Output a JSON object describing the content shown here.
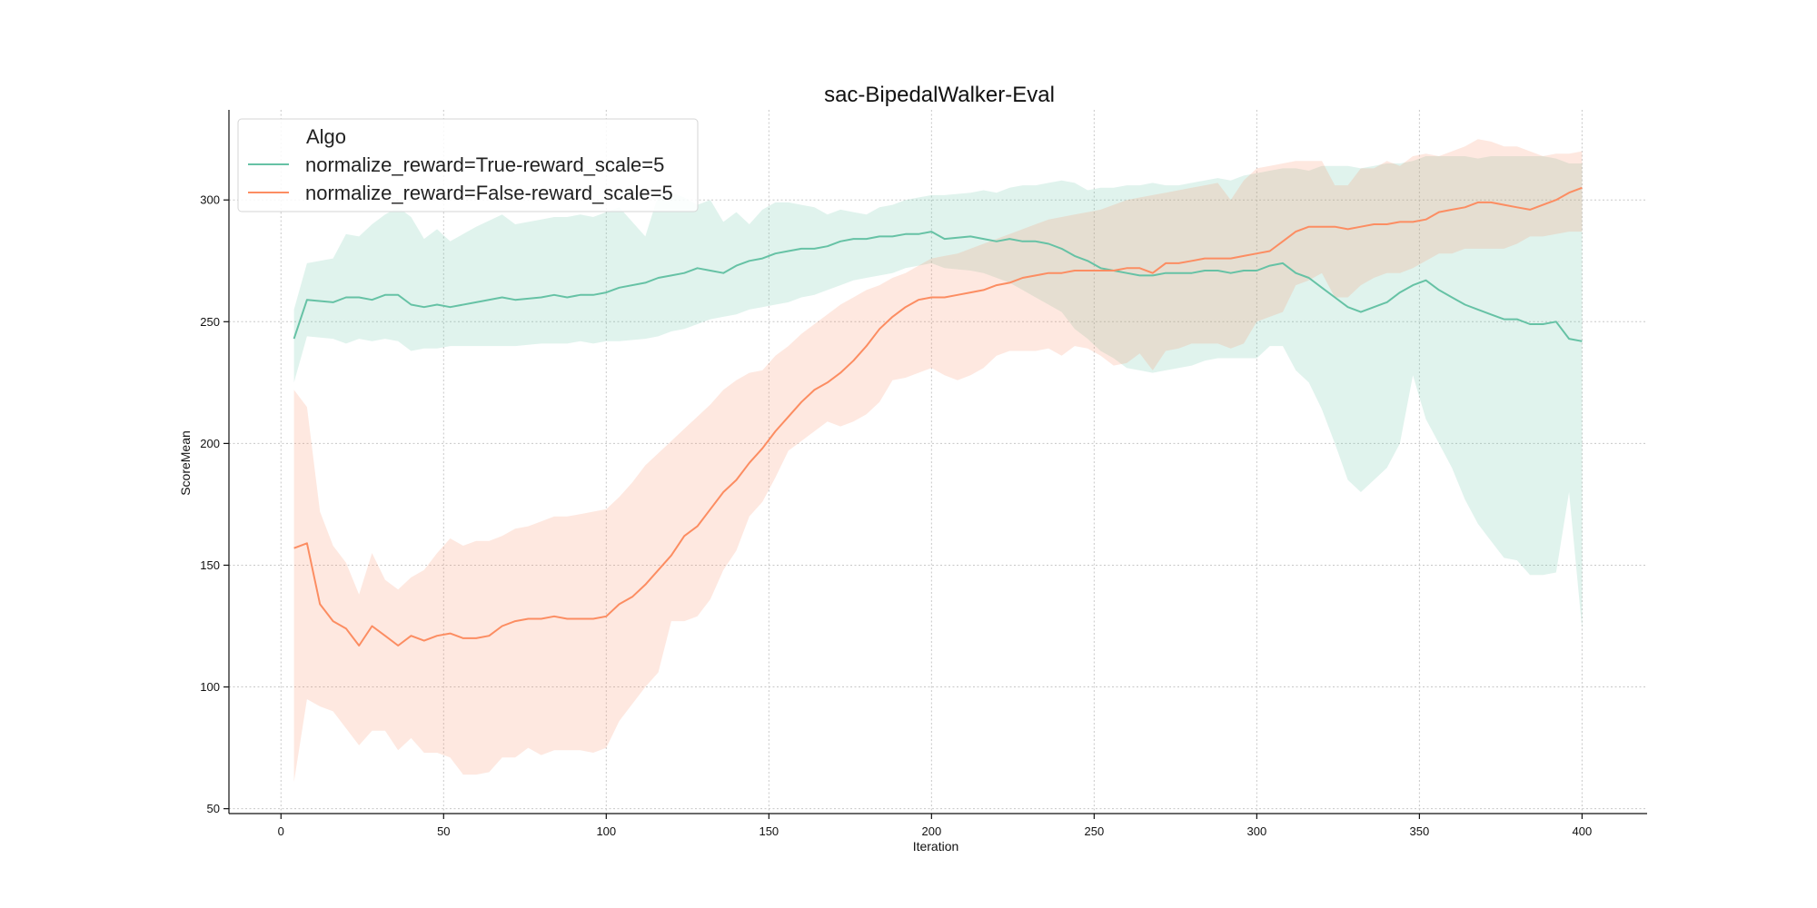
{
  "chart_data": {
    "type": "line",
    "title": "sac-BipedalWalker-Eval",
    "xlabel": "Iteration",
    "ylabel": "ScoreMean",
    "xlim": [
      -16,
      420
    ],
    "ylim": [
      48,
      337
    ],
    "xticks": [
      0,
      50,
      100,
      150,
      200,
      250,
      300,
      350,
      400
    ],
    "yticks": [
      50,
      100,
      150,
      200,
      250,
      300
    ],
    "grid": true,
    "legend": {
      "title": "Algo",
      "position": "top-left"
    },
    "series": [
      {
        "name": "normalize_reward=True-reward_scale=5",
        "color": "#66c2a5",
        "x": [
          4,
          8,
          16,
          20,
          24,
          28,
          32,
          36,
          40,
          44,
          48,
          52,
          60,
          68,
          72,
          80,
          84,
          88,
          92,
          96,
          100,
          104,
          112,
          116,
          120,
          124,
          128,
          132,
          136,
          140,
          144,
          148,
          152,
          156,
          160,
          164,
          168,
          172,
          176,
          180,
          184,
          188,
          192,
          196,
          200,
          204,
          212,
          216,
          220,
          224,
          228,
          232,
          236,
          240,
          244,
          248,
          252,
          256,
          260,
          264,
          268,
          272,
          276,
          280,
          284,
          288,
          292,
          296,
          300,
          304,
          308,
          312,
          316,
          320,
          324,
          328,
          332,
          336,
          340,
          344,
          348,
          352,
          356,
          360,
          364,
          368,
          372,
          376,
          380,
          384,
          388,
          392,
          396,
          400
        ],
        "mean": [
          243,
          259,
          258,
          260,
          260,
          259,
          261,
          261,
          257,
          256,
          257,
          256,
          258,
          260,
          259,
          260,
          261,
          260,
          261,
          261,
          262,
          264,
          266,
          268,
          269,
          270,
          272,
          271,
          270,
          273,
          275,
          276,
          278,
          279,
          280,
          280,
          281,
          283,
          284,
          284,
          285,
          285,
          286,
          286,
          287,
          284,
          285,
          284,
          283,
          284,
          283,
          283,
          282,
          280,
          277,
          275,
          272,
          271,
          270,
          269,
          269,
          270,
          270,
          270,
          271,
          271,
          270,
          271,
          271,
          273,
          274,
          270,
          268,
          264,
          260,
          256,
          254,
          256,
          258,
          262,
          265,
          267,
          263,
          260,
          257,
          255,
          253,
          251,
          251,
          249,
          249,
          250,
          243,
          242
        ],
        "upper": [
          255,
          274,
          276,
          286,
          285,
          290,
          294,
          297,
          293,
          284,
          288,
          283,
          289,
          294,
          290,
          292,
          293,
          293,
          294,
          293,
          295,
          297,
          285,
          302,
          303,
          301,
          298,
          300,
          291,
          295,
          290,
          296,
          299,
          299,
          298,
          297,
          294,
          296,
          295,
          294,
          297,
          298,
          300,
          301,
          302,
          302,
          303,
          304,
          303,
          305,
          306,
          306,
          307,
          308,
          307,
          304,
          305,
          305,
          306,
          306,
          307,
          306,
          306,
          307,
          308,
          309,
          308,
          310,
          311,
          312,
          313,
          313,
          312,
          314,
          314,
          314,
          313,
          314,
          315,
          315,
          316,
          318,
          318,
          318,
          318,
          317,
          318,
          318,
          318,
          318,
          318,
          317,
          315,
          315
        ],
        "lower": [
          225,
          244,
          243,
          241,
          243,
          242,
          243,
          242,
          238,
          239,
          239,
          240,
          240,
          240,
          240,
          241,
          241,
          241,
          242,
          241,
          242,
          242,
          243,
          244,
          246,
          247,
          249,
          251,
          252,
          253,
          255,
          256,
          257,
          258,
          260,
          261,
          263,
          265,
          267,
          268,
          269,
          270,
          272,
          273,
          274,
          272,
          271,
          270,
          268,
          266,
          263,
          260,
          257,
          254,
          247,
          243,
          238,
          235,
          231,
          230,
          229,
          230,
          231,
          232,
          234,
          235,
          235,
          235,
          235,
          240,
          240,
          230,
          225,
          214,
          200,
          185,
          180,
          185,
          190,
          200,
          228,
          210,
          200,
          190,
          177,
          167,
          160,
          153,
          152,
          146,
          146,
          147,
          180,
          124
        ]
      },
      {
        "name": "normalize_reward=False-reward_scale=5",
        "color": "#fc8d62",
        "x": [
          4,
          8,
          12,
          16,
          20,
          24,
          28,
          32,
          36,
          40,
          44,
          48,
          52,
          56,
          60,
          64,
          68,
          72,
          76,
          80,
          84,
          88,
          92,
          96,
          100,
          104,
          108,
          112,
          116,
          120,
          124,
          128,
          132,
          136,
          140,
          144,
          148,
          152,
          156,
          160,
          164,
          168,
          172,
          176,
          180,
          184,
          188,
          192,
          196,
          200,
          204,
          208,
          212,
          216,
          220,
          224,
          228,
          232,
          236,
          240,
          244,
          248,
          252,
          256,
          260,
          264,
          268,
          272,
          276,
          280,
          284,
          288,
          292,
          296,
          300,
          304,
          308,
          312,
          316,
          320,
          324,
          328,
          332,
          336,
          340,
          344,
          348,
          352,
          356,
          360,
          364,
          368,
          372,
          376,
          380,
          384,
          388,
          392,
          396,
          400
        ],
        "mean": [
          157,
          159,
          134,
          127,
          124,
          117,
          125,
          121,
          117,
          121,
          119,
          121,
          122,
          120,
          120,
          121,
          125,
          127,
          128,
          128,
          129,
          128,
          128,
          128,
          129,
          134,
          137,
          142,
          148,
          154,
          162,
          166,
          173,
          180,
          185,
          192,
          198,
          205,
          211,
          217,
          222,
          225,
          229,
          234,
          240,
          247,
          252,
          256,
          259,
          260,
          260,
          261,
          262,
          263,
          265,
          266,
          268,
          269,
          270,
          270,
          271,
          271,
          271,
          271,
          272,
          272,
          270,
          274,
          274,
          275,
          276,
          276,
          276,
          277,
          278,
          279,
          283,
          287,
          289,
          289,
          289,
          288,
          289,
          290,
          290,
          291,
          291,
          292,
          295,
          296,
          297,
          299,
          299,
          298,
          297,
          296,
          298,
          300,
          303,
          305
        ],
        "upper": [
          222,
          215,
          172,
          158,
          151,
          138,
          155,
          144,
          140,
          145,
          148,
          155,
          161,
          158,
          160,
          160,
          162,
          165,
          166,
          168,
          170,
          170,
          171,
          172,
          173,
          178,
          184,
          191,
          196,
          201,
          206,
          211,
          216,
          222,
          226,
          229,
          230,
          236,
          240,
          245,
          249,
          253,
          257,
          260,
          263,
          265,
          268,
          270,
          273,
          276,
          277,
          278,
          280,
          282,
          284,
          286,
          288,
          290,
          292,
          293,
          294,
          295,
          296,
          298,
          300,
          301,
          302,
          303,
          304,
          305,
          306,
          307,
          300,
          308,
          313,
          314,
          315,
          316,
          316,
          316,
          306,
          306,
          313,
          313,
          316,
          314,
          318,
          319,
          318,
          320,
          322,
          325,
          324,
          322,
          322,
          320,
          318,
          319,
          319,
          320
        ],
        "lower": [
          61,
          95,
          92,
          90,
          83,
          76,
          82,
          82,
          74,
          79,
          73,
          73,
          71,
          64,
          64,
          65,
          71,
          71,
          75,
          72,
          74,
          74,
          74,
          73,
          75,
          86,
          93,
          100,
          106,
          127,
          127,
          129,
          136,
          148,
          156,
          170,
          176,
          186,
          197,
          201,
          205,
          209,
          207,
          209,
          212,
          217,
          226,
          227,
          229,
          231,
          228,
          226,
          228,
          231,
          236,
          238,
          238,
          238,
          239,
          236,
          240,
          239,
          236,
          232,
          233,
          237,
          230,
          238,
          239,
          241,
          241,
          241,
          239,
          241,
          250,
          252,
          254,
          265,
          267,
          270,
          260,
          260,
          265,
          268,
          270,
          270,
          272,
          275,
          278,
          278,
          280,
          280,
          280,
          280,
          282,
          285,
          285,
          286,
          287,
          287
        ]
      }
    ]
  }
}
